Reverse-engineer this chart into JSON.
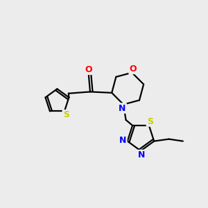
{
  "background_color": "#ececec",
  "bond_color": "#000000",
  "atom_colors": {
    "O": "#ff0000",
    "N": "#0000ff",
    "S_thio": "#cccc00",
    "S_diaz": "#cccc00"
  },
  "figsize": [
    3.0,
    3.0
  ],
  "dpi": 100
}
